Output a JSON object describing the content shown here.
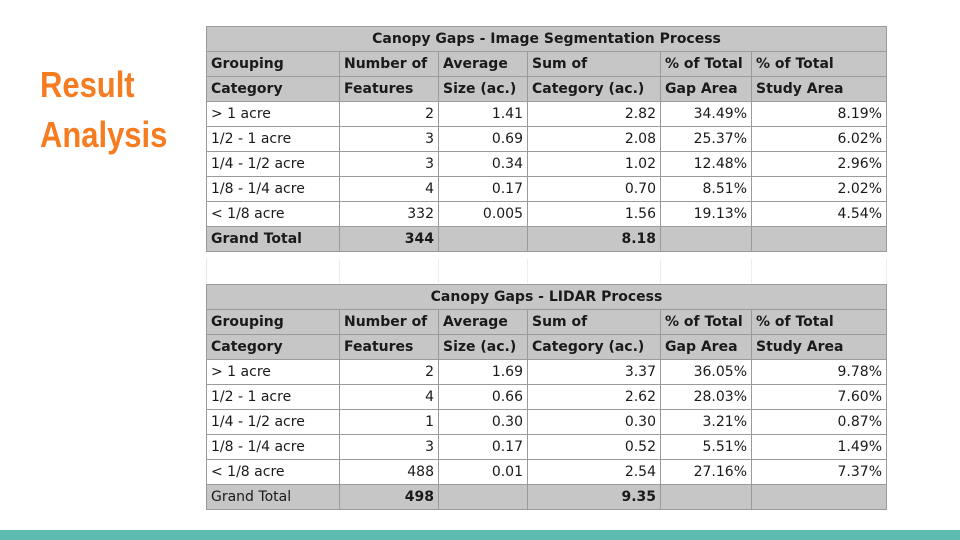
{
  "slide": {
    "title_line1": "Result",
    "title_line2": "Analysis"
  },
  "tables": [
    {
      "caption": "Canopy Gaps - Image Segmentation Process",
      "header_row1": [
        "Grouping",
        "Number of",
        "Average",
        "Sum of",
        "% of Total",
        "% of Total"
      ],
      "header_row2": [
        "Category",
        "Features",
        "Size (ac.)",
        "Category (ac.)",
        "Gap Area",
        "Study Area"
      ],
      "rows": [
        {
          "category": "> 1 acre",
          "features": "2",
          "avg_size": "1.41",
          "sum": "2.82",
          "gap_pct": "34.49%",
          "study_pct": "8.19%"
        },
        {
          "category": "1/2 - 1 acre",
          "features": "3",
          "avg_size": "0.69",
          "sum": "2.08",
          "gap_pct": "25.37%",
          "study_pct": "6.02%"
        },
        {
          "category": "1/4 - 1/2 acre",
          "features": "3",
          "avg_size": "0.34",
          "sum": "1.02",
          "gap_pct": "12.48%",
          "study_pct": "2.96%"
        },
        {
          "category": "1/8 - 1/4 acre",
          "features": "4",
          "avg_size": "0.17",
          "sum": "0.70",
          "gap_pct": "8.51%",
          "study_pct": "2.02%"
        },
        {
          "category": "< 1/8 acre",
          "features": "332",
          "avg_size": "0.005",
          "sum": "1.56",
          "gap_pct": "19.13%",
          "study_pct": "4.54%"
        }
      ],
      "total": {
        "label": "Grand Total",
        "features": "344",
        "sum": "8.18"
      }
    },
    {
      "caption": "Canopy Gaps - LIDAR Process",
      "header_row1": [
        "Grouping",
        "Number of",
        "Average",
        "Sum of",
        "% of Total",
        "% of Total"
      ],
      "header_row2": [
        "Category",
        "Features",
        "Size (ac.)",
        "Category (ac.)",
        "Gap Area",
        "Study Area"
      ],
      "rows": [
        {
          "category": "> 1 acre",
          "features": "2",
          "avg_size": "1.69",
          "sum": "3.37",
          "gap_pct": "36.05%",
          "study_pct": "9.78%"
        },
        {
          "category": "1/2 - 1 acre",
          "features": "4",
          "avg_size": "0.66",
          "sum": "2.62",
          "gap_pct": "28.03%",
          "study_pct": "7.60%"
        },
        {
          "category": "1/4 - 1/2 acre",
          "features": "1",
          "avg_size": "0.30",
          "sum": "0.30",
          "gap_pct": "3.21%",
          "study_pct": "0.87%"
        },
        {
          "category": "1/8 - 1/4 acre",
          "features": "3",
          "avg_size": "0.17",
          "sum": "0.52",
          "gap_pct": "5.51%",
          "study_pct": "1.49%"
        },
        {
          "category": "< 1/8 acre",
          "features": "488",
          "avg_size": "0.01",
          "sum": "2.54",
          "gap_pct": "27.16%",
          "study_pct": "7.37%"
        }
      ],
      "total": {
        "label": "Grand Total",
        "features": "498",
        "sum": "9.35"
      }
    }
  ],
  "colors": {
    "title": "#f57c20",
    "header_fill": "#c6c6c6",
    "bottom_bar": "#5cbcaf"
  }
}
